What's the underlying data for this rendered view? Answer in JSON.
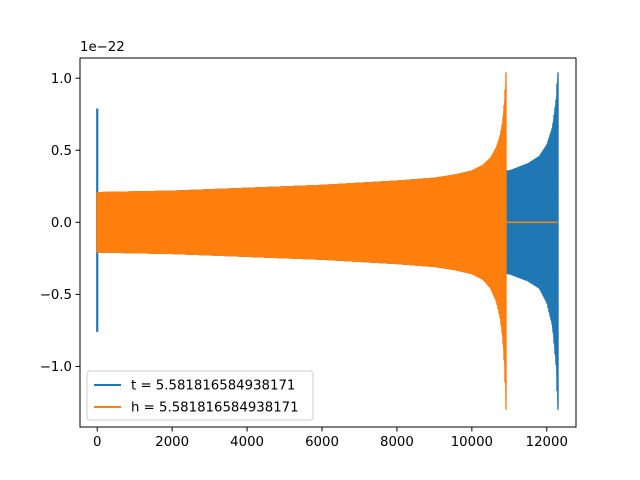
{
  "chart_data": {
    "type": "line",
    "title": "",
    "xlabel": "",
    "ylabel": "",
    "y_offset_text": "1e−22",
    "xlim": [
      -460,
      12780
    ],
    "ylim": [
      -1.42,
      1.14
    ],
    "y_scale_note": "values are in units of 1e-22",
    "xticks": [
      0,
      2000,
      4000,
      6000,
      8000,
      10000,
      12000
    ],
    "xtick_labels": [
      "0",
      "2000",
      "4000",
      "6000",
      "8000",
      "10000",
      "12000"
    ],
    "yticks": [
      1.0,
      0.5,
      0.0,
      -0.5,
      -1.0
    ],
    "ytick_labels": [
      "1.0",
      "0.5",
      "0.0",
      "−0.5",
      "−1.0"
    ],
    "grid": false,
    "legend_position": "lower-left",
    "series": [
      {
        "name": "t = 5.581816584938171",
        "color": "#1f77b4",
        "style": "dense oscillation envelope",
        "spike_start": {
          "x": 0,
          "min": -0.76,
          "max": 0.79
        },
        "envelope": {
          "x": [
            0,
            2000,
            4000,
            6000,
            8000,
            9000,
            10000,
            10500,
            10900,
            11000,
            11500,
            11800,
            12000,
            12150,
            12250,
            12290
          ],
          "upper": [
            0.21,
            0.22,
            0.24,
            0.26,
            0.29,
            0.31,
            0.35,
            0.38,
            0.36,
            0.36,
            0.41,
            0.46,
            0.54,
            0.66,
            0.86,
            1.04
          ],
          "lower": [
            -0.21,
            -0.22,
            -0.24,
            -0.26,
            -0.29,
            -0.31,
            -0.35,
            -0.38,
            -0.36,
            -0.36,
            -0.41,
            -0.46,
            -0.56,
            -0.72,
            -1.0,
            -1.3
          ]
        }
      },
      {
        "name": "h = 5.581816584938171",
        "color": "#ff7f0e",
        "style": "dense oscillation envelope",
        "envelope": {
          "x": [
            0,
            2000,
            4000,
            6000,
            7000,
            8000,
            9000,
            9500,
            10000,
            10300,
            10500,
            10650,
            10750,
            10820,
            10870,
            10910
          ],
          "upper": [
            0.21,
            0.22,
            0.24,
            0.26,
            0.275,
            0.29,
            0.31,
            0.33,
            0.36,
            0.4,
            0.45,
            0.52,
            0.6,
            0.7,
            0.85,
            1.04
          ],
          "lower": [
            -0.21,
            -0.22,
            -0.24,
            -0.26,
            -0.275,
            -0.29,
            -0.31,
            -0.33,
            -0.36,
            -0.4,
            -0.46,
            -0.55,
            -0.66,
            -0.8,
            -1.0,
            -1.3
          ]
        },
        "flat_after": {
          "x_start": 10910,
          "x_end": 12290,
          "y": 0.0
        }
      }
    ]
  }
}
